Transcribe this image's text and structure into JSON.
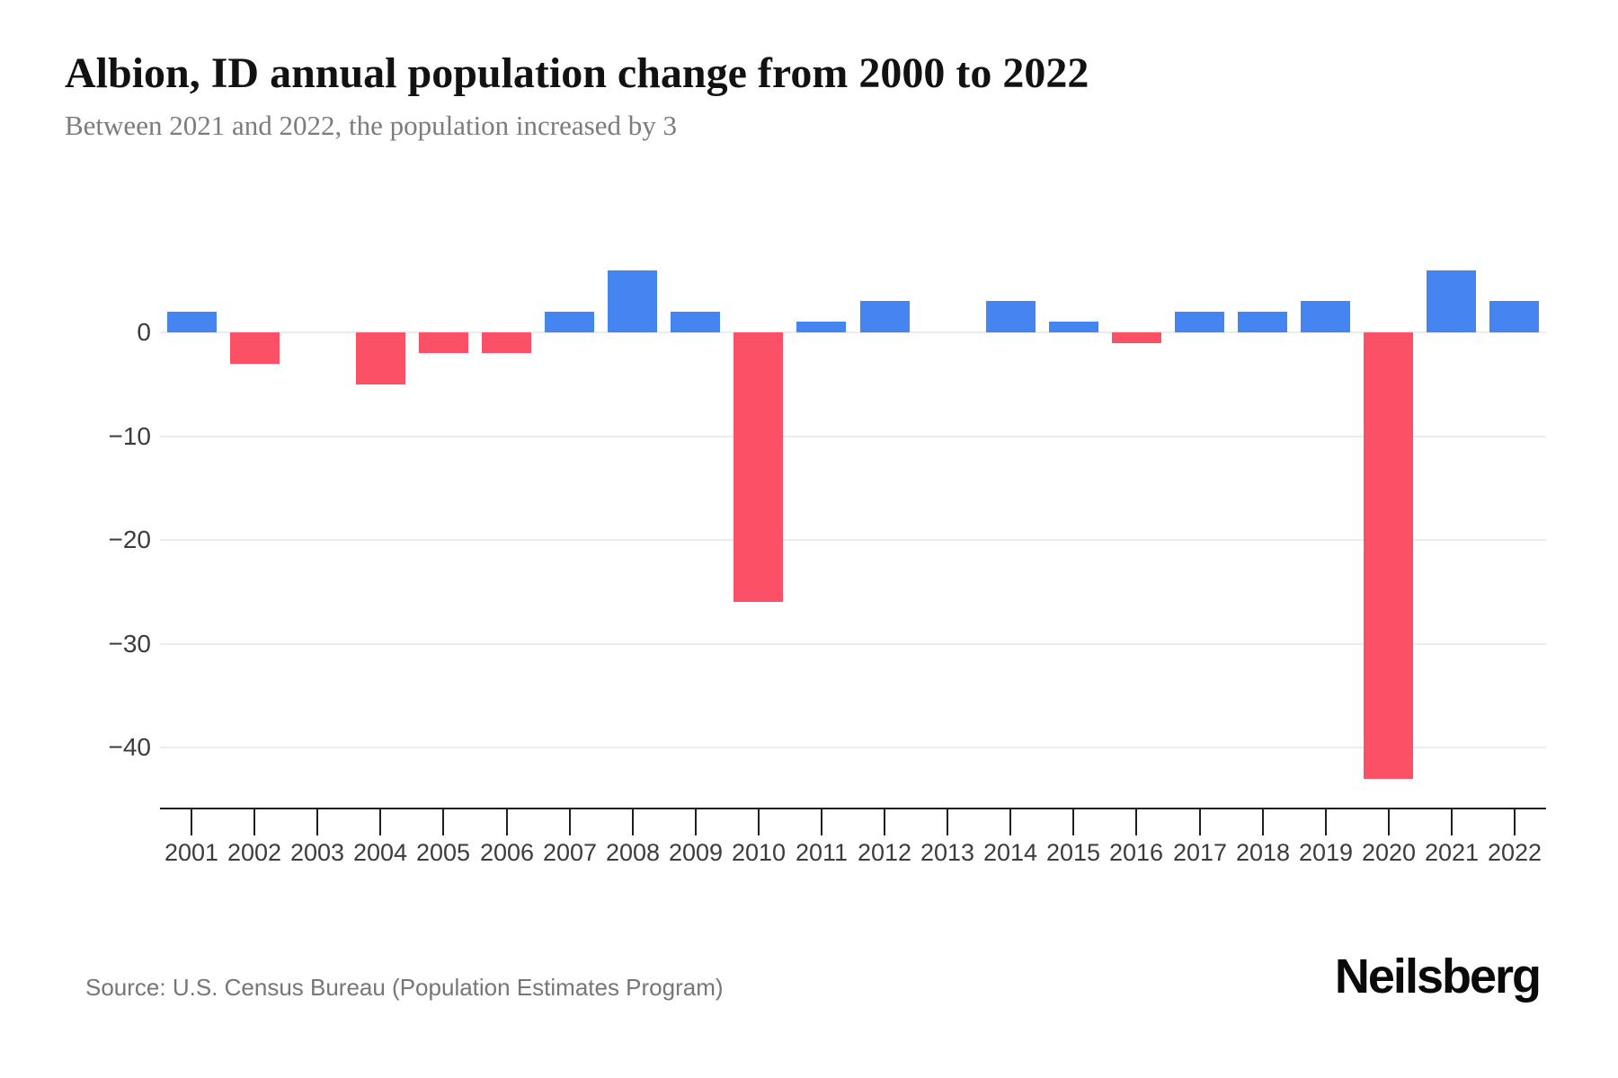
{
  "header": {
    "title": "Albion, ID annual population change from 2000 to 2022",
    "subtitle": "Between 2021 and 2022, the population increased by 3"
  },
  "footer": {
    "source": "Source: U.S. Census Bureau (Population Estimates Program)",
    "brand": "Neilsberg"
  },
  "chart_data": {
    "type": "bar",
    "title": "Albion, ID annual population change from 2000 to 2022",
    "categories": [
      "2001",
      "2002",
      "2003",
      "2004",
      "2005",
      "2006",
      "2007",
      "2008",
      "2009",
      "2010",
      "2011",
      "2012",
      "2013",
      "2014",
      "2015",
      "2016",
      "2017",
      "2018",
      "2019",
      "2020",
      "2021",
      "2022"
    ],
    "values": [
      2,
      -3,
      0,
      -5,
      -2,
      -2,
      2,
      6,
      2,
      -26,
      1,
      3,
      0,
      3,
      1,
      -1,
      2,
      2,
      3,
      -43,
      6,
      3
    ],
    "xlabel": "",
    "ylabel": "",
    "ylim": [
      -46,
      7
    ],
    "yticks": [
      {
        "value": 0,
        "label": "0"
      },
      {
        "value": -10,
        "label": "−10"
      },
      {
        "value": -20,
        "label": "−20"
      },
      {
        "value": -30,
        "label": "−30"
      },
      {
        "value": -40,
        "label": "−40"
      }
    ],
    "grid": "horizontal",
    "legend": "none",
    "colors": {
      "positive": "#4585f1",
      "negative": "#fb5066"
    }
  }
}
